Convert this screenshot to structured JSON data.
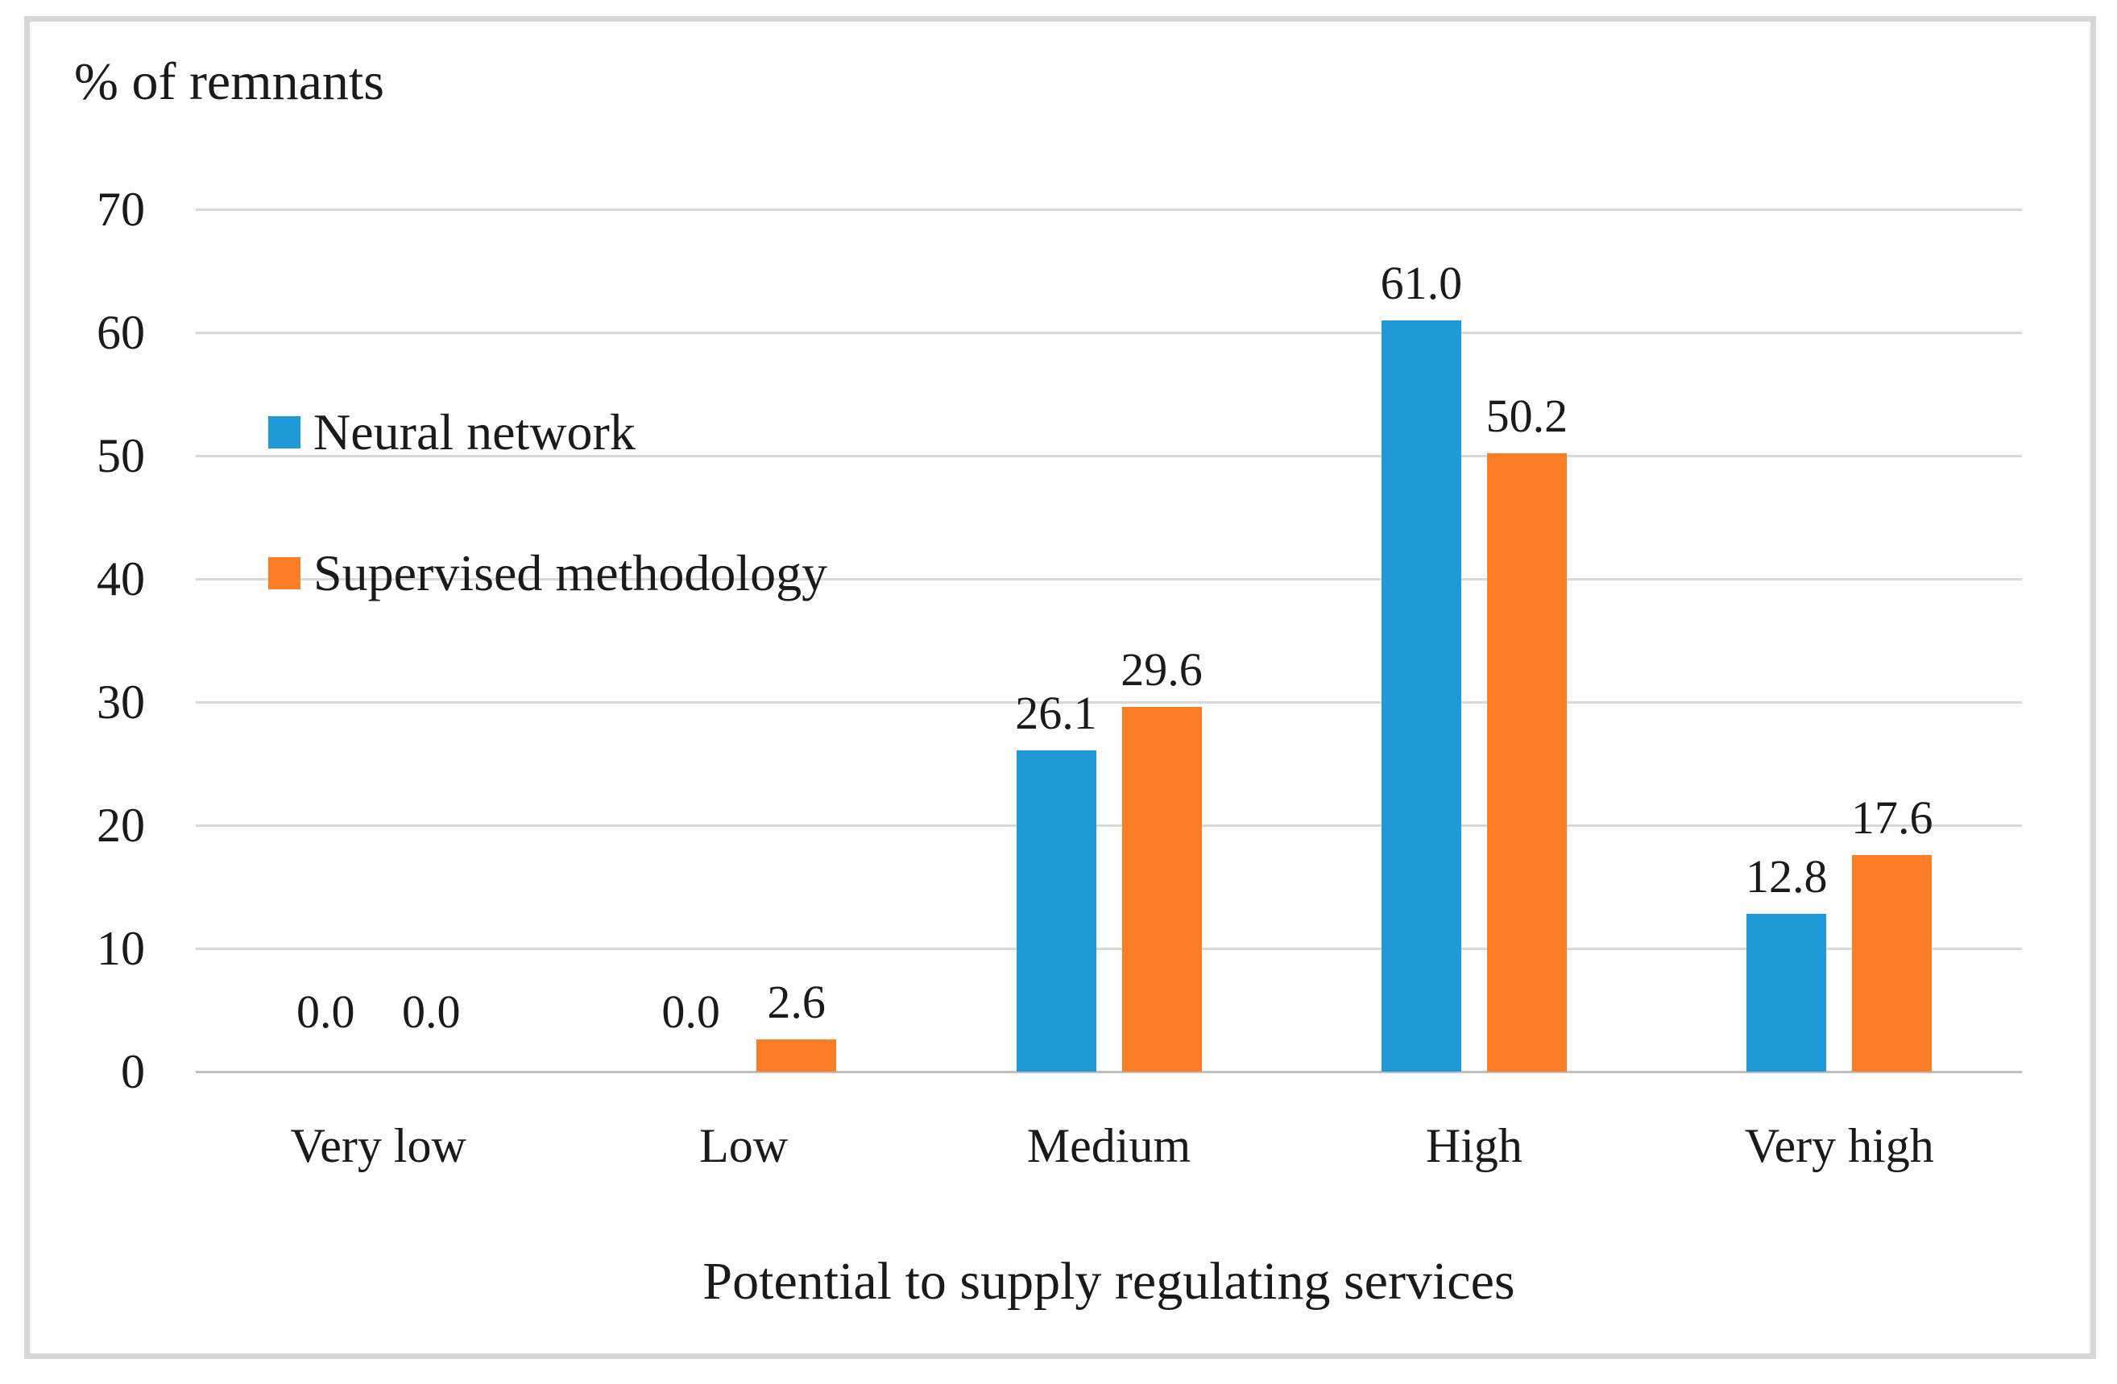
{
  "chart_data": {
    "type": "bar",
    "title": "% of remnants",
    "xlabel": "Potential to supply regulating services",
    "ylabel": "% of remnants",
    "categories": [
      "Very low",
      "Low",
      "Medium",
      "High",
      "Very high"
    ],
    "series": [
      {
        "name": "Neural network",
        "color": "#1F9AD6",
        "values": [
          0.0,
          0.0,
          26.1,
          61.0,
          12.8
        ],
        "labels": [
          "0.0",
          "0.0",
          "26.1",
          "61.0",
          "12.8"
        ]
      },
      {
        "name": "Supervised methodology",
        "color": "#FB7D26",
        "values": [
          0.0,
          2.6,
          29.6,
          50.2,
          17.6
        ],
        "labels": [
          "0.0",
          "2.6",
          "29.6",
          "50.2",
          "17.6"
        ]
      }
    ],
    "y_ticks": [
      0,
      10,
      20,
      30,
      40,
      50,
      60,
      70
    ],
    "ylim": [
      0,
      70
    ],
    "grid": true,
    "legend_position": "inside-top-left"
  },
  "colors": {
    "gridline": "#D9D9D9",
    "axis_line": "#BFBFBF",
    "frame_border": "#D6D6D6",
    "text": "#1A1A1A"
  }
}
